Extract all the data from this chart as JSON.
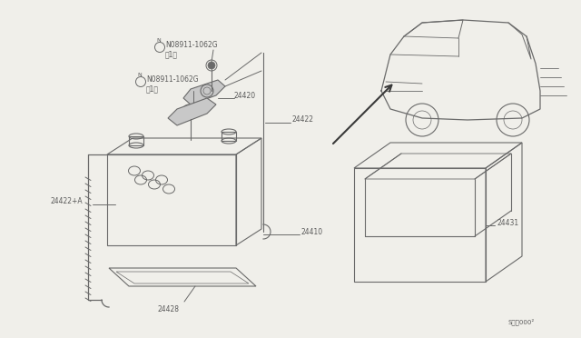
{
  "bg_color": "#f0efea",
  "line_color": "#6a6a6a",
  "text_color": "#5a5a5a",
  "bg_color2": "#ffffff",
  "parts": {
    "label_08911_top": "N08911-1062G",
    "label_08911_top2": "（1）",
    "label_08911_bot": "N08911-1062G",
    "label_08911_bot2": "（1）",
    "label_24420": "24420",
    "label_24422": "24422",
    "label_24410": "24410",
    "label_24422A": "24422+A",
    "label_24428": "24428",
    "label_24431": "24431",
    "label_code": "S４・000²"
  }
}
